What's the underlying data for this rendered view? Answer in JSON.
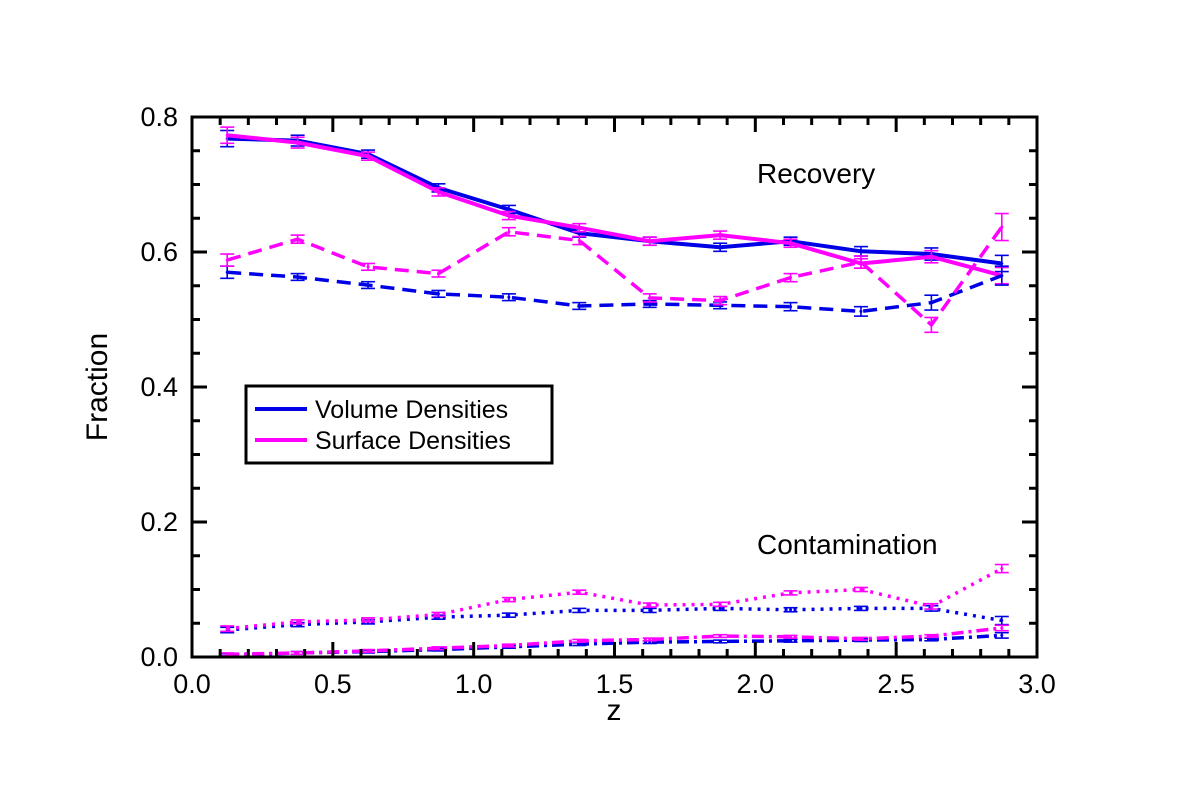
{
  "chart_data": {
    "type": "line",
    "xlabel": "z",
    "ylabel": "Fraction",
    "xlim": [
      0.0,
      3.0
    ],
    "ylim": [
      0.0,
      0.8
    ],
    "x_ticks": [
      "0.0",
      "0.5",
      "1.0",
      "1.5",
      "2.0",
      "2.5",
      "3.0"
    ],
    "y_ticks": [
      "0.0",
      "0.2",
      "0.4",
      "0.6",
      "0.8"
    ],
    "annotations": {
      "recovery": "Recovery",
      "contamination": "Contamination"
    },
    "legend": {
      "placement": "center-left",
      "entries": [
        {
          "label": "Volume Densities",
          "color": "#0000e6"
        },
        {
          "label": "Surface Densities",
          "color": "#ff00ff"
        }
      ]
    },
    "x": [
      0.125,
      0.375,
      0.625,
      0.875,
      1.125,
      1.375,
      1.625,
      1.875,
      2.125,
      2.375,
      2.625,
      2.875
    ],
    "series": [
      {
        "name": "Volume Densities - recovery (solid)",
        "color": "#0000e6",
        "style": "solid",
        "values": [
          0.768,
          0.765,
          0.745,
          0.695,
          0.663,
          0.628,
          0.616,
          0.607,
          0.616,
          0.601,
          0.597,
          0.583
        ],
        "errors": [
          0.012,
          0.008,
          0.006,
          0.006,
          0.006,
          0.006,
          0.006,
          0.006,
          0.006,
          0.007,
          0.009,
          0.012
        ]
      },
      {
        "name": "Surface Densities - recovery (solid)",
        "color": "#ff00ff",
        "style": "solid",
        "values": [
          0.773,
          0.762,
          0.742,
          0.689,
          0.654,
          0.636,
          0.616,
          0.625,
          0.613,
          0.583,
          0.593,
          0.565
        ],
        "errors": [
          0.012,
          0.008,
          0.006,
          0.006,
          0.006,
          0.006,
          0.006,
          0.006,
          0.006,
          0.007,
          0.009,
          0.012
        ]
      },
      {
        "name": "Volume Densities - dashed",
        "color": "#0000e6",
        "style": "dashed",
        "values": [
          0.57,
          0.563,
          0.551,
          0.538,
          0.533,
          0.52,
          0.523,
          0.521,
          0.519,
          0.512,
          0.525,
          0.565
        ],
        "errors": [
          0.009,
          0.005,
          0.005,
          0.005,
          0.005,
          0.005,
          0.005,
          0.005,
          0.006,
          0.007,
          0.011,
          0.014
        ]
      },
      {
        "name": "Surface Densities - dashed",
        "color": "#ff00ff",
        "style": "dashed",
        "values": [
          0.588,
          0.619,
          0.578,
          0.568,
          0.63,
          0.617,
          0.532,
          0.528,
          0.562,
          0.585,
          0.492,
          0.637
        ],
        "errors": [
          0.009,
          0.006,
          0.005,
          0.005,
          0.006,
          0.006,
          0.006,
          0.006,
          0.006,
          0.009,
          0.011,
          0.02
        ]
      },
      {
        "name": "Volume Densities - contamination (dotted)",
        "color": "#0000e6",
        "style": "dotted",
        "values": [
          0.04,
          0.048,
          0.052,
          0.059,
          0.062,
          0.069,
          0.069,
          0.072,
          0.07,
          0.072,
          0.072,
          0.054
        ],
        "errors": [
          0.004,
          0.003,
          0.003,
          0.003,
          0.003,
          0.003,
          0.003,
          0.003,
          0.003,
          0.003,
          0.004,
          0.006
        ]
      },
      {
        "name": "Surface Densities - contamination (dotted)",
        "color": "#ff00ff",
        "style": "dotted",
        "values": [
          0.042,
          0.052,
          0.055,
          0.063,
          0.085,
          0.096,
          0.077,
          0.078,
          0.095,
          0.1,
          0.075,
          0.131
        ],
        "errors": [
          0.004,
          0.003,
          0.003,
          0.003,
          0.003,
          0.003,
          0.003,
          0.003,
          0.003,
          0.003,
          0.004,
          0.006
        ]
      },
      {
        "name": "Volume Densities - contamination (dash-dot)",
        "color": "#0000e6",
        "style": "dashdot",
        "values": [
          0.003,
          0.006,
          0.008,
          0.011,
          0.015,
          0.019,
          0.022,
          0.023,
          0.024,
          0.025,
          0.026,
          0.032
        ],
        "errors": [
          0.002,
          0.002,
          0.002,
          0.002,
          0.002,
          0.002,
          0.002,
          0.002,
          0.002,
          0.002,
          0.002,
          0.004
        ]
      },
      {
        "name": "Surface Densities - contamination (dash-dot)",
        "color": "#ff00ff",
        "style": "dashdot",
        "values": [
          0.004,
          0.006,
          0.009,
          0.013,
          0.017,
          0.024,
          0.026,
          0.031,
          0.03,
          0.027,
          0.031,
          0.043
        ],
        "errors": [
          0.002,
          0.002,
          0.002,
          0.002,
          0.002,
          0.002,
          0.002,
          0.002,
          0.002,
          0.002,
          0.002,
          0.004
        ]
      }
    ]
  }
}
